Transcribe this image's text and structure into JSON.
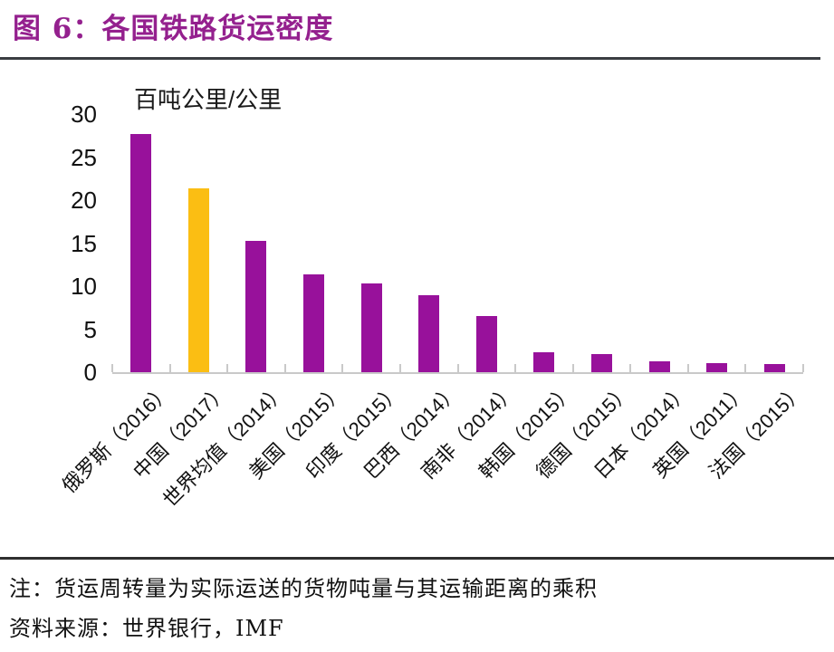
{
  "header": {
    "title": "图 6：各国铁路货运密度"
  },
  "chart_data": {
    "type": "bar",
    "title": "各国铁路货运密度",
    "unit_label": "百吨公里/公里",
    "categories": [
      "俄罗斯（2016）",
      "中国（2017）",
      "世界均值（2014）",
      "美国（2015）",
      "印度（2015）",
      "巴西（2014）",
      "南非（2014）",
      "韩国（2015）",
      "德国（2015）",
      "日本（2014）",
      "英国（2011）",
      "法国（2015）"
    ],
    "values": [
      27.7,
      21.4,
      15.3,
      11.4,
      10.3,
      9.0,
      6.5,
      2.3,
      2.1,
      1.3,
      1.1,
      1.0
    ],
    "highlight_index": 1,
    "bar_color": "#98119B",
    "highlight_color": "#FBBE13",
    "y_ticks": [
      0,
      5,
      10,
      15,
      20,
      25,
      30
    ],
    "ylim": [
      0,
      30
    ],
    "grid": false,
    "legend": null,
    "axis_color": "#c9c9c9"
  },
  "footer": {
    "note": "注：货运周转量为实际运送的货物吨量与其运输距离的乘积",
    "source": "资料来源：世界银行，IMF"
  },
  "colors": {
    "title": "#94208E",
    "bar": "#98119B",
    "highlight": "#FBBE13",
    "divider": "#3a3d42"
  }
}
